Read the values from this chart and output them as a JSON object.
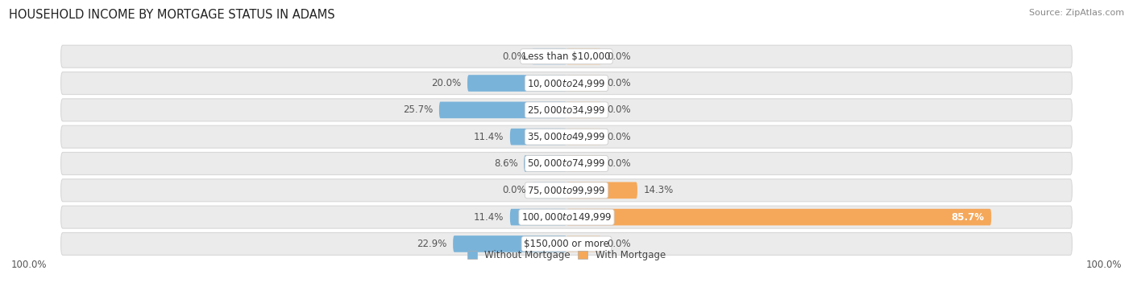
{
  "title": "HOUSEHOLD INCOME BY MORTGAGE STATUS IN ADAMS",
  "source": "Source: ZipAtlas.com",
  "categories": [
    "Less than $10,000",
    "$10,000 to $24,999",
    "$25,000 to $34,999",
    "$35,000 to $49,999",
    "$50,000 to $74,999",
    "$75,000 to $99,999",
    "$100,000 to $149,999",
    "$150,000 or more"
  ],
  "without_mortgage": [
    0.0,
    20.0,
    25.7,
    11.4,
    8.6,
    0.0,
    11.4,
    22.9
  ],
  "with_mortgage": [
    0.0,
    0.0,
    0.0,
    0.0,
    0.0,
    14.3,
    85.7,
    0.0
  ],
  "color_without": "#7ab3d9",
  "color_without_light": "#b8d5ea",
  "color_with": "#f5a85a",
  "color_with_light": "#f8d4a8",
  "axis_max": 100.0,
  "min_stub": 7.0,
  "legend_without": "Without Mortgage",
  "legend_with": "With Mortgage",
  "title_fontsize": 10.5,
  "label_fontsize": 8.5,
  "category_fontsize": 8.5,
  "footer_fontsize": 8.5,
  "source_fontsize": 8.0,
  "row_bg": "#ebebeb",
  "row_border": "#d8d8d8"
}
